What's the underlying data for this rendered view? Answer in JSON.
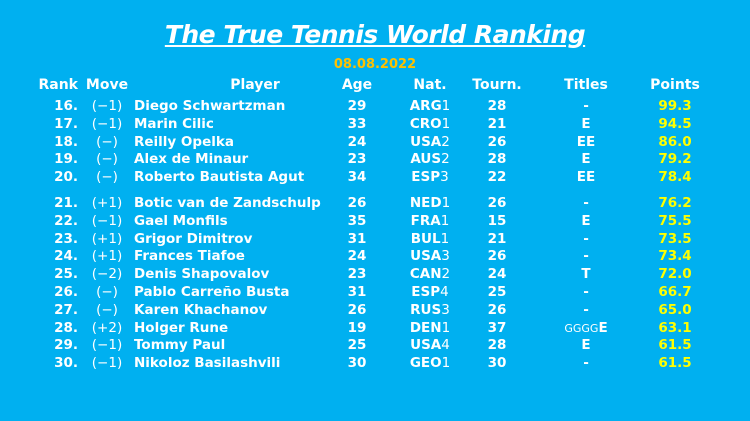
{
  "title": "The True Tennis World Ranking",
  "date": "08.08.2022",
  "colors": {
    "background": "#00b0f0",
    "date": "#ffc000",
    "points": "#ffff00",
    "text": "#ffffff"
  },
  "headers": {
    "rank": "Rank",
    "move": "Move",
    "player": "Player",
    "age": "Age",
    "nat": "Nat.",
    "tourn": "Tourn.",
    "titles": "Titles",
    "points": "Points"
  },
  "rows": [
    {
      "rank": "16.",
      "move": "(−1)",
      "player": "Diego Schwartzman",
      "age": "29",
      "nat": "ARG",
      "nat_sfx": "1",
      "tourn": "28",
      "titles_pre": "",
      "titles": "-",
      "points": "99.3"
    },
    {
      "rank": "17.",
      "move": "(−1)",
      "player": "Marin Cilic",
      "age": "33",
      "nat": "CRO",
      "nat_sfx": "1",
      "tourn": "21",
      "titles_pre": "",
      "titles": "E",
      "points": "94.5"
    },
    {
      "rank": "18.",
      "move": "(−)",
      "player": "Reilly Opelka",
      "age": "24",
      "nat": "USA",
      "nat_sfx": "2",
      "tourn": "26",
      "titles_pre": "",
      "titles": "EE",
      "points": "86.0"
    },
    {
      "rank": "19.",
      "move": "(−)",
      "player": "Alex de Minaur",
      "age": "23",
      "nat": "AUS",
      "nat_sfx": "2",
      "tourn": "28",
      "titles_pre": "",
      "titles": "E",
      "points": "79.2"
    },
    {
      "rank": "20.",
      "move": "(−)",
      "player": "Roberto Bautista Agut",
      "age": "34",
      "nat": "ESP",
      "nat_sfx": "3",
      "tourn": "22",
      "titles_pre": "",
      "titles": "EE",
      "points": "78.4"
    },
    {
      "rank": "21.",
      "move": "(+1)",
      "player": "Botic van de Zandschulp",
      "age": "26",
      "nat": "NED",
      "nat_sfx": "1",
      "tourn": "26",
      "titles_pre": "",
      "titles": "-",
      "points": "76.2"
    },
    {
      "rank": "22.",
      "move": "(−1)",
      "player": "Gael Monfils",
      "age": "35",
      "nat": "FRA",
      "nat_sfx": "1",
      "tourn": "15",
      "titles_pre": "",
      "titles": "E",
      "points": "75.5"
    },
    {
      "rank": "23.",
      "move": "(+1)",
      "player": "Grigor Dimitrov",
      "age": "31",
      "nat": "BUL",
      "nat_sfx": "1",
      "tourn": "21",
      "titles_pre": "",
      "titles": "-",
      "points": "73.5"
    },
    {
      "rank": "24.",
      "move": "(+1)",
      "player": "Frances Tiafoe",
      "age": "24",
      "nat": "USA",
      "nat_sfx": "3",
      "tourn": "26",
      "titles_pre": "",
      "titles": "-",
      "points": "73.4"
    },
    {
      "rank": "25.",
      "move": "(−2)",
      "player": "Denis Shapovalov",
      "age": "23",
      "nat": "CAN",
      "nat_sfx": "2",
      "tourn": "24",
      "titles_pre": "",
      "titles": "T",
      "points": "72.0"
    },
    {
      "rank": "26.",
      "move": "(−)",
      "player": "Pablo Carreño Busta",
      "age": "31",
      "nat": "ESP",
      "nat_sfx": "4",
      "tourn": "25",
      "titles_pre": "",
      "titles": "-",
      "points": "66.7"
    },
    {
      "rank": "27.",
      "move": "(−)",
      "player": "Karen Khachanov",
      "age": "26",
      "nat": "RUS",
      "nat_sfx": "3",
      "tourn": "26",
      "titles_pre": "",
      "titles": "-",
      "points": "65.0"
    },
    {
      "rank": "28.",
      "move": "(+2)",
      "player": "Holger Rune",
      "age": "19",
      "nat": "DEN",
      "nat_sfx": "1",
      "tourn": "37",
      "titles_pre": "GGGG",
      "titles": "E",
      "points": "63.1"
    },
    {
      "rank": "29.",
      "move": "(−1)",
      "player": "Tommy Paul",
      "age": "25",
      "nat": "USA",
      "nat_sfx": "4",
      "tourn": "28",
      "titles_pre": "",
      "titles": "E",
      "points": "61.5"
    },
    {
      "rank": "30.",
      "move": "(−1)",
      "player": "Nikoloz Basilashvili",
      "age": "30",
      "nat": "GEO",
      "nat_sfx": "1",
      "tourn": "30",
      "titles_pre": "",
      "titles": "-",
      "points": "61.5"
    }
  ]
}
